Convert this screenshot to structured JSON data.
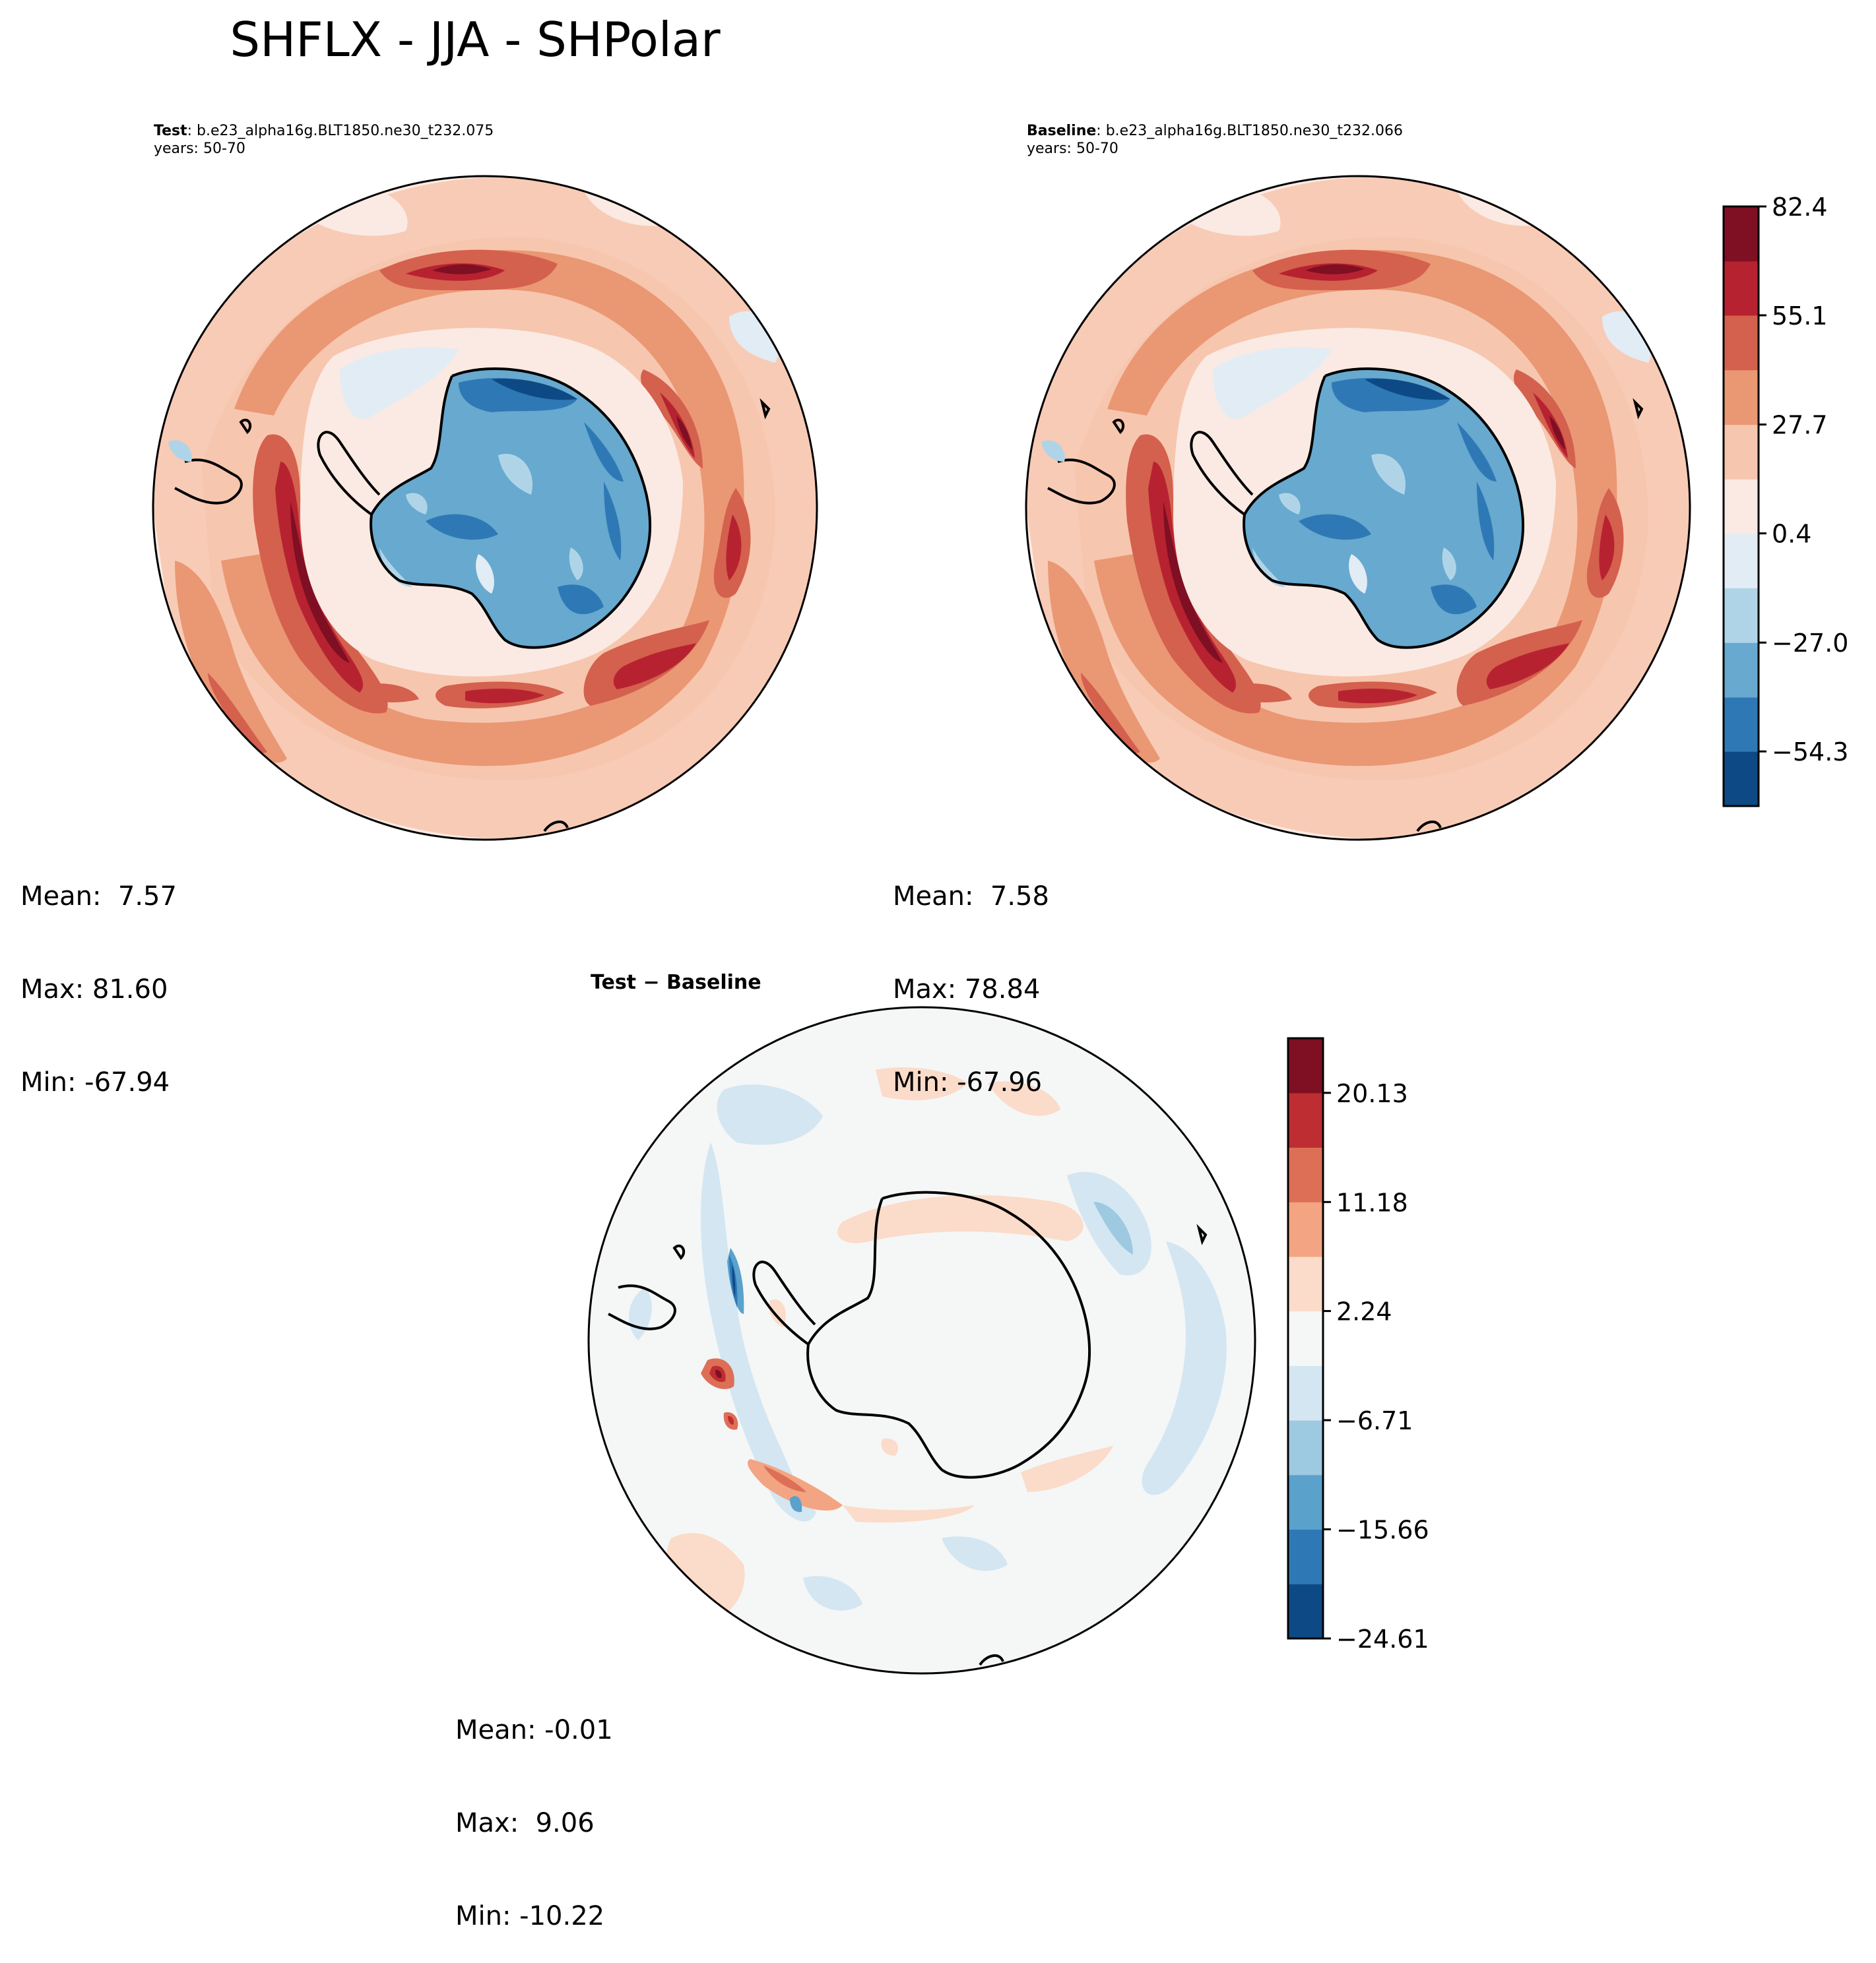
{
  "figure": {
    "title": "SHFLX - JJA - SHPolar"
  },
  "panels": {
    "test": {
      "label_bold": "Test",
      "label_case": ": b.e23_alpha16g.BLT1850.ne30_t232.075",
      "years": "years: 50-70",
      "stats": {
        "mean": "Mean:  7.57",
        "max": "Max: 81.60",
        "min": "Min: -67.94"
      }
    },
    "baseline": {
      "label_bold": "Baseline",
      "label_case": ": b.e23_alpha16g.BLT1850.ne30_t232.066",
      "years": "years: 50-70",
      "stats": {
        "mean": "Mean:  7.58",
        "max": "Max: 78.84",
        "min": "Min: -67.96"
      }
    },
    "difference": {
      "title": "Test − Baseline",
      "stats": {
        "mean": "Mean: -0.01",
        "max": "Max:  9.06",
        "min": "Min: -10.22"
      }
    }
  },
  "colorbars": {
    "main": {
      "colors": [
        "#ffffff00",
        "#0d4a85",
        "#2e79b5",
        "#67a9cf",
        "#b0d4e7",
        "#e2ecf4",
        "#faeae3",
        "#f7c6ae",
        "#ea9774",
        "#d4604e",
        "#b72230",
        "#7f0f23"
      ],
      "levels": [
        -68.0,
        -54.3,
        -40.7,
        -27.0,
        -13.3,
        0.4,
        14.0,
        27.7,
        41.4,
        55.1,
        68.7,
        82.4
      ],
      "tick_labels": [
        "82.4",
        "55.1",
        "27.7",
        "0.4",
        "−27.0",
        "−54.3"
      ],
      "tick_values": [
        82.4,
        55.1,
        27.7,
        0.4,
        -27.0,
        -54.3
      ]
    },
    "difference": {
      "colors": [
        "#0d4a85",
        "#2e79b5",
        "#5aa1cc",
        "#9dc9e1",
        "#d3e6f2",
        "#f5f6f6",
        "#fbdbc9",
        "#f3a482",
        "#dd6f56",
        "#bd2d31",
        "#7f0f23"
      ],
      "levels": [
        -24.61,
        -20.14,
        -15.66,
        -11.19,
        -6.71,
        -2.24,
        2.24,
        6.71,
        11.18,
        15.66,
        20.13,
        24.61
      ],
      "tick_labels": [
        "20.13",
        "11.18",
        "2.24",
        "−6.71",
        "−15.66",
        "−24.61"
      ],
      "tick_values": [
        20.13,
        11.18,
        2.24,
        -6.71,
        -15.66,
        -24.61
      ]
    }
  }
}
